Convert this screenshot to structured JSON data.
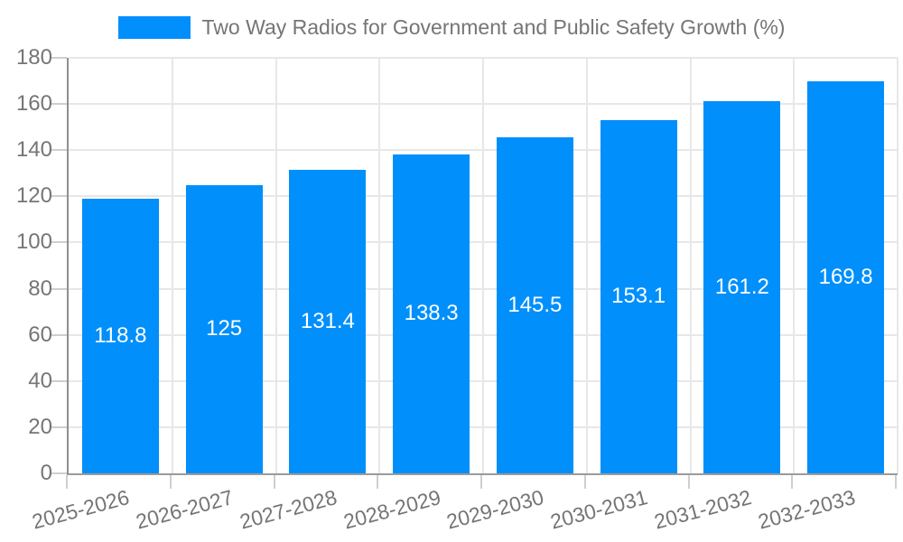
{
  "legend": {
    "series_label": "Two Way Radios for Government and Public Safety Growth (%)"
  },
  "chart_data": {
    "type": "bar",
    "title": "Two Way Radios for Government and Public Safety Growth (%)",
    "series_name": "Two Way Radios for Government and Public Safety Growth (%)",
    "categories": [
      "2025-2026",
      "2026-2027",
      "2027-2028",
      "2028-2029",
      "2029-2030",
      "2030-2031",
      "2031-2032",
      "2032-2033"
    ],
    "values": [
      118.8,
      125,
      131.4,
      138.3,
      145.5,
      153.1,
      161.2,
      169.8
    ],
    "xlabel": "",
    "ylabel": "",
    "ylim": [
      0,
      180
    ],
    "ytick_step": 20,
    "yticks": [
      0,
      20,
      40,
      60,
      80,
      100,
      120,
      140,
      160,
      180
    ],
    "grid": "on",
    "legend_position": "top",
    "colors": {
      "bar": "#008ffb",
      "value_label": "#ffffff",
      "axis_text": "#757575",
      "grid_line": "#e7e7e7",
      "axis_line": "#8f8f8f",
      "tick_line": "#cfcfcf"
    }
  }
}
